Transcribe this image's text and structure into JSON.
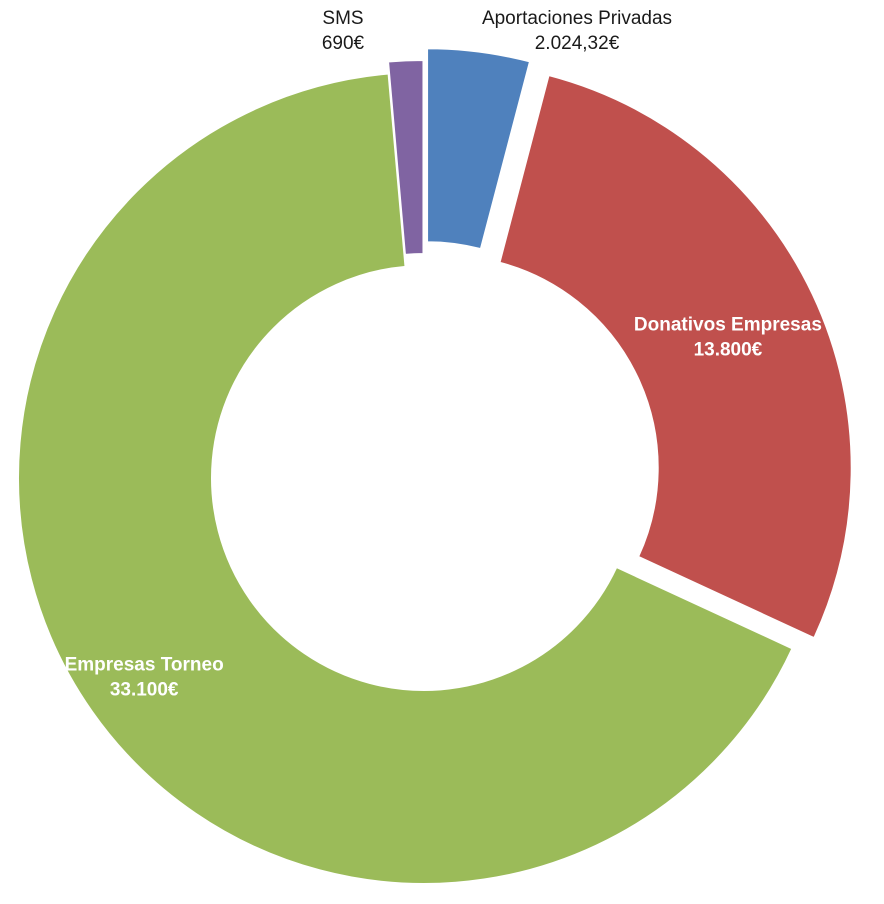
{
  "chart_data": {
    "type": "pie",
    "variant": "doughnut",
    "exploded": true,
    "slices": [
      {
        "label": "Aportaciones Privadas",
        "value": 2024.32,
        "value_label": "2.024,32€",
        "color": "#4F81BD"
      },
      {
        "label": "Donativos Empresas",
        "value": 13800,
        "value_label": "13.800€",
        "color": "#C0504D"
      },
      {
        "label": "Empresas Torneo",
        "value": 33100,
        "value_label": "33.100€",
        "color": "#9BBB59"
      },
      {
        "label": "SMS",
        "value": 690,
        "value_label": "690€",
        "color": "#8064A2"
      }
    ]
  }
}
